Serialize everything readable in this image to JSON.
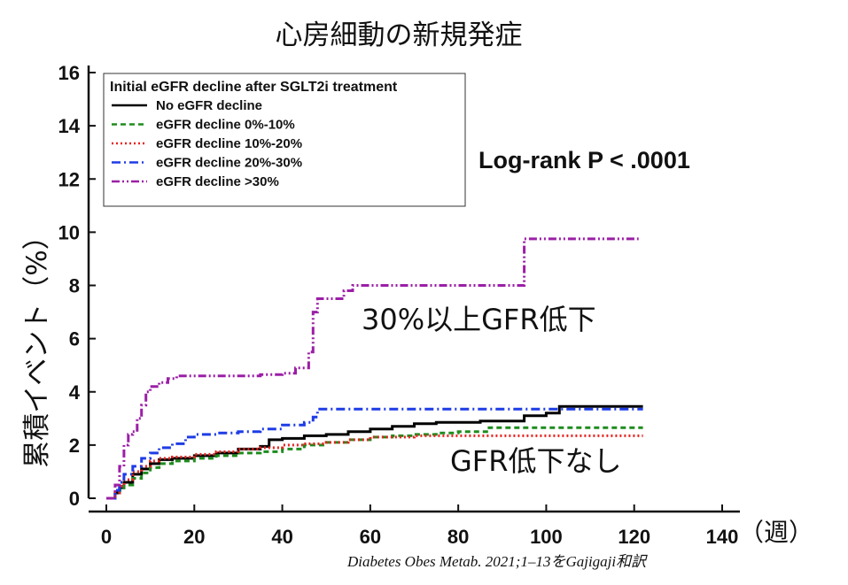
{
  "chart_data": {
    "type": "line",
    "title": "心房細動の新規発症",
    "ylabel": "累積イベント（%）",
    "xlabel": "",
    "x_unit": "（週）",
    "xlim": [
      0,
      140
    ],
    "ylim": [
      0,
      16
    ],
    "x_ticks": [
      "0",
      "20",
      "40",
      "60",
      "80",
      "100",
      "120",
      "140"
    ],
    "y_ticks": [
      "0",
      "2",
      "4",
      "6",
      "8",
      "10",
      "12",
      "14",
      "16"
    ],
    "legend_title": "Initial eGFR decline after SGLT2i treatment",
    "legend_position": "top-left",
    "annotation": "Log-rank P < .0001",
    "label_high": "30%以上GFR低下",
    "label_none": "GFR低下なし",
    "citation": "Diabetes Obes Metab. 2021;1–13をGajigaji和訳",
    "series": [
      {
        "name": "No eGFR decline",
        "color": "#000000",
        "dash": "",
        "x": [
          0,
          2,
          3,
          4,
          6,
          8,
          10,
          12,
          15,
          20,
          25,
          30,
          35,
          37,
          40,
          45,
          50,
          55,
          60,
          65,
          70,
          75,
          80,
          85,
          90,
          95,
          100,
          103,
          105,
          110,
          115,
          122
        ],
        "y": [
          0,
          0.2,
          0.4,
          0.6,
          0.9,
          1.1,
          1.3,
          1.45,
          1.5,
          1.6,
          1.7,
          1.85,
          1.95,
          2.2,
          2.25,
          2.35,
          2.4,
          2.5,
          2.6,
          2.7,
          2.8,
          2.85,
          2.85,
          2.9,
          2.9,
          3.1,
          3.2,
          3.45,
          3.45,
          3.45,
          3.45,
          3.45
        ]
      },
      {
        "name": "eGFR decline 0%-10%",
        "color": "#1e8c1e",
        "dash": "6 4",
        "x": [
          0,
          2,
          3,
          4,
          6,
          8,
          10,
          12,
          15,
          20,
          25,
          30,
          35,
          40,
          45,
          50,
          55,
          60,
          65,
          70,
          75,
          80,
          85,
          87,
          90,
          100,
          110,
          122
        ],
        "y": [
          0,
          0.15,
          0.3,
          0.5,
          0.75,
          0.95,
          1.15,
          1.3,
          1.4,
          1.5,
          1.6,
          1.7,
          1.75,
          1.85,
          2.0,
          2.1,
          2.2,
          2.3,
          2.35,
          2.4,
          2.45,
          2.5,
          2.5,
          2.65,
          2.65,
          2.65,
          2.65,
          2.65
        ]
      },
      {
        "name": "eGFR decline 10%-20%",
        "color": "#e8221e",
        "dash": "2 3",
        "x": [
          0,
          2,
          3,
          4,
          6,
          8,
          10,
          12,
          15,
          20,
          25,
          30,
          35,
          40,
          45,
          50,
          55,
          60,
          70,
          80,
          90,
          100,
          110,
          122
        ],
        "y": [
          0,
          0.2,
          0.45,
          0.7,
          1.0,
          1.2,
          1.4,
          1.5,
          1.55,
          1.65,
          1.75,
          1.85,
          1.9,
          2.0,
          2.05,
          2.1,
          2.2,
          2.3,
          2.35,
          2.35,
          2.35,
          2.35,
          2.35,
          2.35
        ]
      },
      {
        "name": "eGFR decline 20%-30%",
        "color": "#1e3ce6",
        "dash": "10 4 2 4",
        "x": [
          0,
          2,
          3,
          4,
          6,
          8,
          10,
          12,
          15,
          18,
          20,
          25,
          30,
          35,
          40,
          45,
          47,
          48,
          50,
          60,
          70,
          80,
          90,
          100,
          110,
          122
        ],
        "y": [
          0,
          0.3,
          0.6,
          0.9,
          1.2,
          1.5,
          1.7,
          1.9,
          2.05,
          2.3,
          2.4,
          2.45,
          2.5,
          2.6,
          2.75,
          2.85,
          3.05,
          3.35,
          3.35,
          3.35,
          3.35,
          3.35,
          3.35,
          3.35,
          3.35,
          3.35
        ]
      },
      {
        "name": "eGFR decline >30%",
        "color": "#9b1fa6",
        "dash": "9 3 2 3 2 3",
        "x": [
          0,
          2,
          3,
          4,
          5,
          6,
          7,
          8,
          9,
          10,
          12,
          14,
          16,
          20,
          25,
          30,
          35,
          40,
          43,
          46,
          47,
          48,
          50,
          54,
          56,
          60,
          70,
          80,
          90,
          93,
          95,
          100,
          110,
          121
        ],
        "y": [
          0,
          0.5,
          1.2,
          2.0,
          2.4,
          2.5,
          3.0,
          3.5,
          4.0,
          4.2,
          4.35,
          4.5,
          4.6,
          4.6,
          4.6,
          4.6,
          4.65,
          4.7,
          4.9,
          5.5,
          7.0,
          7.5,
          7.5,
          7.8,
          8.0,
          8.0,
          8.0,
          8.0,
          8.0,
          8.0,
          9.75,
          9.75,
          9.75,
          9.75
        ]
      }
    ]
  }
}
